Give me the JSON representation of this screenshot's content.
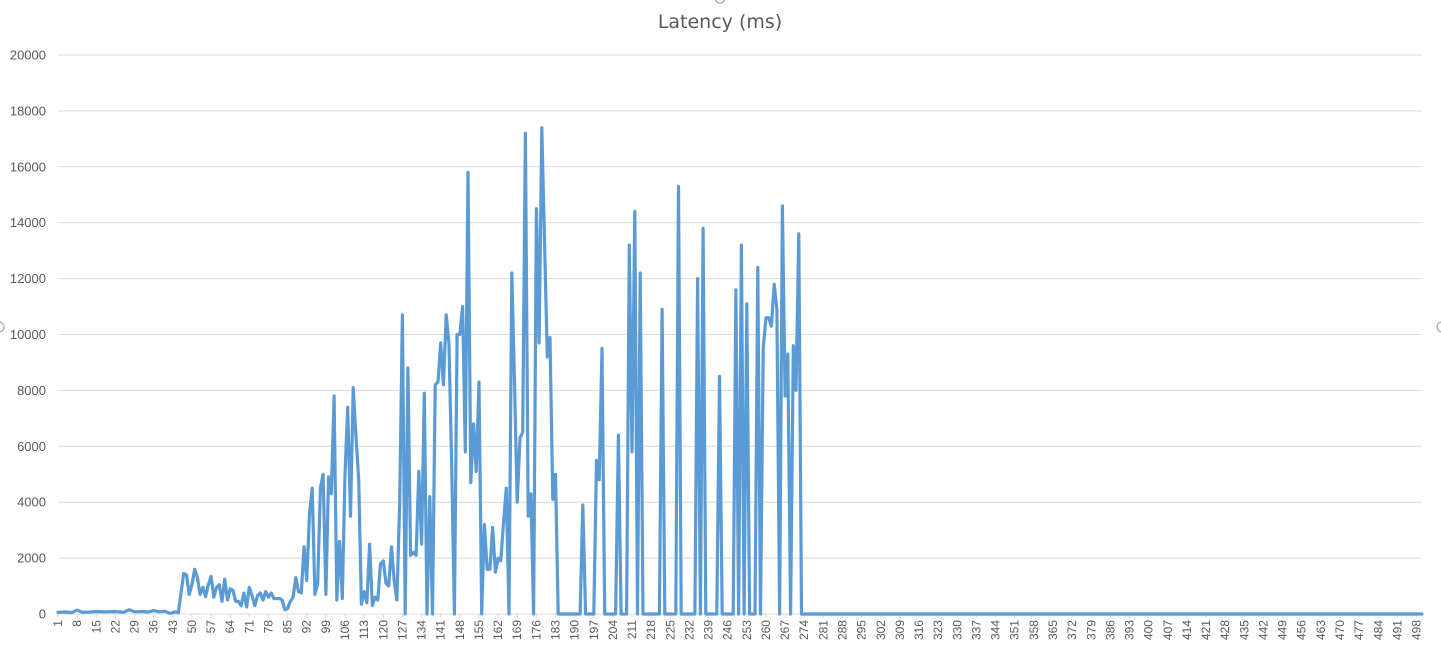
{
  "chart_data": {
    "type": "line",
    "title": "Latency (ms)",
    "xlabel": "",
    "ylabel": "",
    "ylim": [
      0,
      20000
    ],
    "y_ticks": [
      0,
      2000,
      4000,
      6000,
      8000,
      10000,
      12000,
      14000,
      16000,
      18000,
      20000
    ],
    "x_range": [
      1,
      500
    ],
    "x_tick_step": 7,
    "grid": true,
    "legend": "none",
    "series_color": "#5b9bd5",
    "series": [
      {
        "points": [
          [
            1,
            60
          ],
          [
            4,
            70
          ],
          [
            6,
            50
          ],
          [
            8,
            140
          ],
          [
            10,
            60
          ],
          [
            13,
            70
          ],
          [
            15,
            90
          ],
          [
            18,
            80
          ],
          [
            22,
            90
          ],
          [
            25,
            60
          ],
          [
            27,
            150
          ],
          [
            29,
            80
          ],
          [
            32,
            90
          ],
          [
            34,
            70
          ],
          [
            36,
            120
          ],
          [
            38,
            80
          ],
          [
            40,
            100
          ],
          [
            42,
            20
          ],
          [
            44,
            80
          ],
          [
            45,
            40
          ],
          [
            47,
            1450
          ],
          [
            48,
            1400
          ],
          [
            49,
            700
          ],
          [
            50,
            1050
          ],
          [
            51,
            1600
          ],
          [
            52,
            1300
          ],
          [
            53,
            700
          ],
          [
            54,
            950
          ],
          [
            55,
            620
          ],
          [
            56,
            1050
          ],
          [
            57,
            1350
          ],
          [
            58,
            600
          ],
          [
            59,
            950
          ],
          [
            60,
            1050
          ],
          [
            61,
            450
          ],
          [
            62,
            1250
          ],
          [
            63,
            500
          ],
          [
            64,
            900
          ],
          [
            65,
            850
          ],
          [
            66,
            450
          ],
          [
            67,
            450
          ],
          [
            68,
            300
          ],
          [
            69,
            750
          ],
          [
            70,
            250
          ],
          [
            71,
            950
          ],
          [
            72,
            650
          ],
          [
            73,
            300
          ],
          [
            74,
            650
          ],
          [
            75,
            750
          ],
          [
            76,
            500
          ],
          [
            77,
            800
          ],
          [
            78,
            600
          ],
          [
            79,
            750
          ],
          [
            80,
            550
          ],
          [
            81,
            550
          ],
          [
            82,
            550
          ],
          [
            83,
            500
          ],
          [
            84,
            150
          ],
          [
            85,
            200
          ],
          [
            86,
            450
          ],
          [
            87,
            600
          ],
          [
            88,
            1300
          ],
          [
            89,
            800
          ],
          [
            90,
            750
          ],
          [
            91,
            2400
          ],
          [
            92,
            1200
          ],
          [
            93,
            3600
          ],
          [
            94,
            4500
          ],
          [
            95,
            700
          ],
          [
            96,
            1100
          ],
          [
            97,
            4500
          ],
          [
            98,
            5000
          ],
          [
            99,
            700
          ],
          [
            100,
            4900
          ],
          [
            101,
            4300
          ],
          [
            102,
            7800
          ],
          [
            103,
            500
          ],
          [
            104,
            2600
          ],
          [
            105,
            550
          ],
          [
            106,
            5000
          ],
          [
            107,
            7400
          ],
          [
            108,
            3500
          ],
          [
            109,
            8100
          ],
          [
            110,
            6400
          ],
          [
            111,
            4800
          ],
          [
            112,
            350
          ],
          [
            113,
            800
          ],
          [
            114,
            400
          ],
          [
            115,
            2500
          ],
          [
            116,
            300
          ],
          [
            117,
            600
          ],
          [
            118,
            500
          ],
          [
            119,
            1800
          ],
          [
            120,
            1900
          ],
          [
            121,
            1100
          ],
          [
            122,
            1000
          ],
          [
            123,
            2400
          ],
          [
            124,
            1200
          ],
          [
            125,
            500
          ],
          [
            126,
            4000
          ],
          [
            127,
            10700
          ],
          [
            128,
            0
          ],
          [
            129,
            8800
          ],
          [
            130,
            2100
          ],
          [
            131,
            2200
          ],
          [
            132,
            2100
          ],
          [
            133,
            5100
          ],
          [
            134,
            2500
          ],
          [
            135,
            7900
          ],
          [
            136,
            0
          ],
          [
            137,
            4200
          ],
          [
            138,
            0
          ],
          [
            139,
            8200
          ],
          [
            140,
            8300
          ],
          [
            141,
            9700
          ],
          [
            142,
            8200
          ],
          [
            143,
            10700
          ],
          [
            144,
            9700
          ],
          [
            145,
            5500
          ],
          [
            146,
            0
          ],
          [
            147,
            10000
          ],
          [
            148,
            10000
          ],
          [
            149,
            11000
          ],
          [
            150,
            5800
          ],
          [
            151,
            15800
          ],
          [
            152,
            4700
          ],
          [
            153,
            6800
          ],
          [
            154,
            5100
          ],
          [
            155,
            8300
          ],
          [
            156,
            0
          ],
          [
            157,
            3200
          ],
          [
            158,
            1600
          ],
          [
            159,
            1600
          ],
          [
            160,
            3100
          ],
          [
            161,
            1500
          ],
          [
            162,
            2000
          ],
          [
            163,
            1900
          ],
          [
            164,
            3300
          ],
          [
            165,
            4500
          ],
          [
            166,
            0
          ],
          [
            167,
            12200
          ],
          [
            168,
            8300
          ],
          [
            169,
            4000
          ],
          [
            170,
            6300
          ],
          [
            171,
            6500
          ],
          [
            172,
            17200
          ],
          [
            173,
            3500
          ],
          [
            174,
            4300
          ],
          [
            175,
            0
          ],
          [
            176,
            14500
          ],
          [
            177,
            9700
          ],
          [
            178,
            17400
          ],
          [
            179,
            13200
          ],
          [
            180,
            9200
          ],
          [
            181,
            9900
          ],
          [
            182,
            4100
          ],
          [
            183,
            5000
          ],
          [
            184,
            0
          ],
          [
            185,
            0
          ],
          [
            190,
            0
          ],
          [
            192,
            0
          ],
          [
            193,
            3900
          ],
          [
            194,
            0
          ],
          [
            196,
            0
          ],
          [
            197,
            0
          ],
          [
            198,
            5500
          ],
          [
            199,
            4800
          ],
          [
            200,
            9500
          ],
          [
            201,
            0
          ],
          [
            205,
            0
          ],
          [
            206,
            6400
          ],
          [
            207,
            0
          ],
          [
            209,
            0
          ],
          [
            210,
            13200
          ],
          [
            211,
            5800
          ],
          [
            212,
            14400
          ],
          [
            213,
            0
          ],
          [
            214,
            12200
          ],
          [
            215,
            0
          ],
          [
            221,
            0
          ],
          [
            222,
            10900
          ],
          [
            223,
            0
          ],
          [
            227,
            0
          ],
          [
            228,
            15300
          ],
          [
            229,
            0
          ],
          [
            234,
            0
          ],
          [
            235,
            12000
          ],
          [
            236,
            0
          ],
          [
            237,
            13800
          ],
          [
            238,
            0
          ],
          [
            242,
            0
          ],
          [
            243,
            8500
          ],
          [
            244,
            0
          ],
          [
            248,
            0
          ],
          [
            249,
            11600
          ],
          [
            250,
            0
          ],
          [
            251,
            13200
          ],
          [
            252,
            0
          ],
          [
            253,
            11100
          ],
          [
            254,
            0
          ],
          [
            256,
            0
          ],
          [
            257,
            12400
          ],
          [
            258,
            0
          ],
          [
            259,
            9500
          ],
          [
            260,
            10600
          ],
          [
            261,
            10600
          ],
          [
            262,
            10300
          ],
          [
            263,
            11800
          ],
          [
            264,
            10900
          ],
          [
            265,
            0
          ],
          [
            266,
            14600
          ],
          [
            267,
            7800
          ],
          [
            268,
            9300
          ],
          [
            269,
            0
          ],
          [
            270,
            9600
          ],
          [
            271,
            8000
          ],
          [
            272,
            13600
          ],
          [
            273,
            0
          ],
          [
            276,
            0
          ],
          [
            500,
            0
          ]
        ]
      }
    ]
  }
}
